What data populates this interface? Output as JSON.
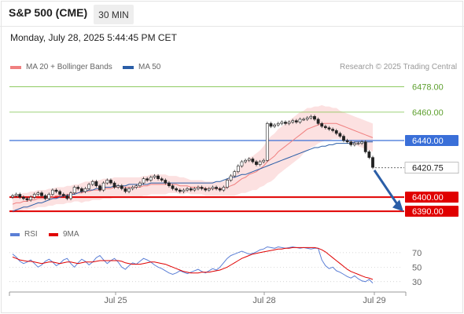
{
  "header": {
    "title": "S&P 500 (CME)",
    "interval": "30 MIN",
    "datetime": "Monday, July 28, 2025 5:44:45 PM CET"
  },
  "legend": {
    "ma20_label": "MA 20 + Bollinger Bands",
    "ma50_label": "MA 50",
    "rsi_label": "RSI",
    "ma9_label": "9MA",
    "credit": "Research © 2025 Trading Central"
  },
  "colors": {
    "ma20": "#f08080",
    "ma50": "#2b5ea7",
    "rsi": "#5b7fd6",
    "ma9": "#e00000",
    "green": "#7fc24b",
    "blue": "#3a6fd8",
    "red": "#e00000"
  },
  "chart_data": [
    {
      "type": "candlestick",
      "ylim": [
        6384,
        6486
      ],
      "x_ticks": [
        "Jul 25",
        "Jul 28",
        "Jul 29"
      ],
      "levels": [
        {
          "value": 6478.0,
          "label": "6478.00",
          "color": "green"
        },
        {
          "value": 6460.0,
          "label": "6460.00",
          "color": "green"
        },
        {
          "value": 6440.0,
          "label": "6440.00",
          "color": "blue"
        },
        {
          "value": 6400.0,
          "label": "6400.00",
          "color": "red"
        },
        {
          "value": 6390.0,
          "label": "6390.00",
          "color": "red"
        }
      ],
      "last_price": {
        "value": 6420.75,
        "label": "6420.75"
      },
      "close": [
        6401,
        6402,
        6400,
        6399,
        6398,
        6400,
        6402,
        6403,
        6401,
        6399,
        6402,
        6405,
        6404,
        6402,
        6401,
        6399,
        6403,
        6407,
        6406,
        6404,
        6406,
        6409,
        6411,
        6408,
        6405,
        6410,
        6412,
        6410,
        6407,
        6408,
        6406,
        6404,
        6406,
        6407,
        6408,
        6410,
        6413,
        6412,
        6414,
        6415,
        6413,
        6412,
        6410,
        6408,
        6406,
        6405,
        6404,
        6405,
        6406,
        6405,
        6406,
        6407,
        6406,
        6405,
        6406,
        6407,
        6406,
        6405,
        6407,
        6412,
        6415,
        6418,
        6422,
        6425,
        6426,
        6427,
        6425,
        6423,
        6425,
        6426,
        6452,
        6450,
        6451,
        6452,
        6453,
        6452,
        6453,
        6454,
        6453,
        6455,
        6455,
        6456,
        6457,
        6455,
        6452,
        6450,
        6449,
        6448,
        6447,
        6445,
        6443,
        6440,
        6439,
        6437,
        6438,
        6438,
        6439,
        6432,
        6428,
        6421
      ],
      "ma20": [
        6395,
        6396,
        6396,
        6397,
        6397,
        6398,
        6398,
        6399,
        6399,
        6399,
        6400,
        6400,
        6401,
        6401,
        6401,
        6402,
        6402,
        6403,
        6403,
        6403,
        6404,
        6404,
        6405,
        6405,
        6405,
        6406,
        6406,
        6406,
        6407,
        6407,
        6407,
        6407,
        6407,
        6407,
        6407,
        6407,
        6408,
        6408,
        6409,
        6409,
        6409,
        6409,
        6409,
        6409,
        6409,
        6409,
        6408,
        6408,
        6408,
        6407,
        6407,
        6407,
        6407,
        6406,
        6406,
        6406,
        6406,
        6406,
        6406,
        6407,
        6408,
        6409,
        6411,
        6413,
        6414,
        6416,
        6417,
        6418,
        6420,
        6422,
        6425,
        6427,
        6429,
        6432,
        6434,
        6436,
        6438,
        6440,
        6442,
        6444,
        6446,
        6448,
        6449,
        6450,
        6451,
        6452,
        6452,
        6452,
        6452,
        6452,
        6451,
        6450,
        6449,
        6448,
        6447,
        6446,
        6445,
        6444,
        6443,
        6442
      ],
      "bb_width": [
        6,
        6,
        6,
        6,
        6,
        6,
        6,
        6,
        6,
        6,
        6,
        6,
        6,
        6,
        6,
        6,
        6,
        6,
        6,
        7,
        7,
        7,
        7,
        7,
        7,
        7,
        7,
        7,
        7,
        7,
        7,
        7,
        7,
        7,
        7,
        7,
        7,
        7,
        7,
        7,
        7,
        7,
        7,
        6,
        6,
        6,
        6,
        6,
        5,
        5,
        5,
        5,
        5,
        5,
        5,
        5,
        5,
        5,
        5,
        6,
        7,
        8,
        9,
        10,
        11,
        12,
        12,
        13,
        13,
        14,
        15,
        16,
        16,
        16,
        16,
        16,
        16,
        16,
        16,
        16,
        15,
        15,
        14,
        14,
        13,
        13,
        12,
        12,
        11,
        11,
        10,
        10,
        10,
        10,
        10,
        10,
        10,
        10,
        10,
        10
      ],
      "ma50": [
        6390,
        6391,
        6392,
        6393,
        6393,
        6394,
        6395,
        6396,
        6396,
        6397,
        6398,
        6399,
        6399,
        6400,
        6401,
        6401,
        6402,
        6402,
        6403,
        6404,
        6404,
        6405,
        6405,
        6406,
        6406,
        6407,
        6407,
        6407,
        6408,
        6408,
        6408,
        6408,
        6409,
        6409,
        6409,
        6409,
        6409,
        6409,
        6410,
        6410,
        6410,
        6410,
        6410,
        6410,
        6410,
        6410,
        6410,
        6410,
        6410,
        6410,
        6410,
        6410,
        6410,
        6410,
        6410,
        6410,
        6411,
        6411,
        6412,
        6413,
        6414,
        6414,
        6415,
        6416,
        6416,
        6417,
        6418,
        6419,
        6420,
        6421,
        6422,
        6423,
        6424,
        6425,
        6426,
        6427,
        6428,
        6429,
        6430,
        6431,
        6432,
        6433,
        6434,
        6435,
        6435,
        6436,
        6436,
        6437,
        6437,
        6438,
        6438,
        6438,
        6438,
        6438,
        6439,
        6439,
        6439,
        6439,
        6439,
        6439
      ]
    },
    {
      "type": "line",
      "ylim": [
        20,
        85
      ],
      "y_ticks": [
        70,
        50,
        30
      ],
      "series": [
        {
          "name": "RSI",
          "values": [
            68,
            64,
            58,
            55,
            57,
            60,
            55,
            50,
            53,
            58,
            61,
            57,
            52,
            55,
            60,
            62,
            55,
            50,
            56,
            61,
            58,
            53,
            57,
            63,
            66,
            60,
            55,
            59,
            62,
            57,
            50,
            47,
            52,
            56,
            54,
            58,
            62,
            60,
            57,
            53,
            50,
            48,
            45,
            42,
            40,
            42,
            45,
            43,
            41,
            43,
            45,
            47,
            44,
            42,
            45,
            48,
            46,
            50,
            56,
            62,
            66,
            68,
            70,
            72,
            70,
            68,
            69,
            71,
            74,
            75,
            78,
            77,
            76,
            78,
            77,
            76,
            77,
            78,
            77,
            76,
            77,
            76,
            75,
            76,
            76,
            60,
            52,
            48,
            50,
            45,
            43,
            40,
            37,
            35,
            38,
            34,
            31,
            30,
            33,
            28
          ]
        },
        {
          "name": "9MA",
          "values": [
            64,
            62,
            60,
            59,
            58,
            58,
            57,
            56,
            55,
            56,
            57,
            57,
            56,
            55,
            56,
            57,
            57,
            56,
            55,
            56,
            57,
            57,
            57,
            58,
            59,
            59,
            59,
            59,
            59,
            59,
            58,
            56,
            55,
            54,
            54,
            54,
            55,
            56,
            57,
            57,
            56,
            55,
            54,
            52,
            50,
            48,
            46,
            44,
            43,
            42,
            42,
            42,
            43,
            43,
            43,
            44,
            45,
            46,
            48,
            50,
            53,
            56,
            59,
            62,
            64,
            66,
            68,
            69,
            70,
            71,
            72,
            73,
            74,
            75,
            75,
            76,
            76,
            77,
            77,
            77,
            77,
            77,
            77,
            77,
            76,
            74,
            71,
            67,
            63,
            59,
            55,
            51,
            47,
            44,
            42,
            40,
            38,
            36,
            35,
            33
          ]
        }
      ]
    }
  ]
}
